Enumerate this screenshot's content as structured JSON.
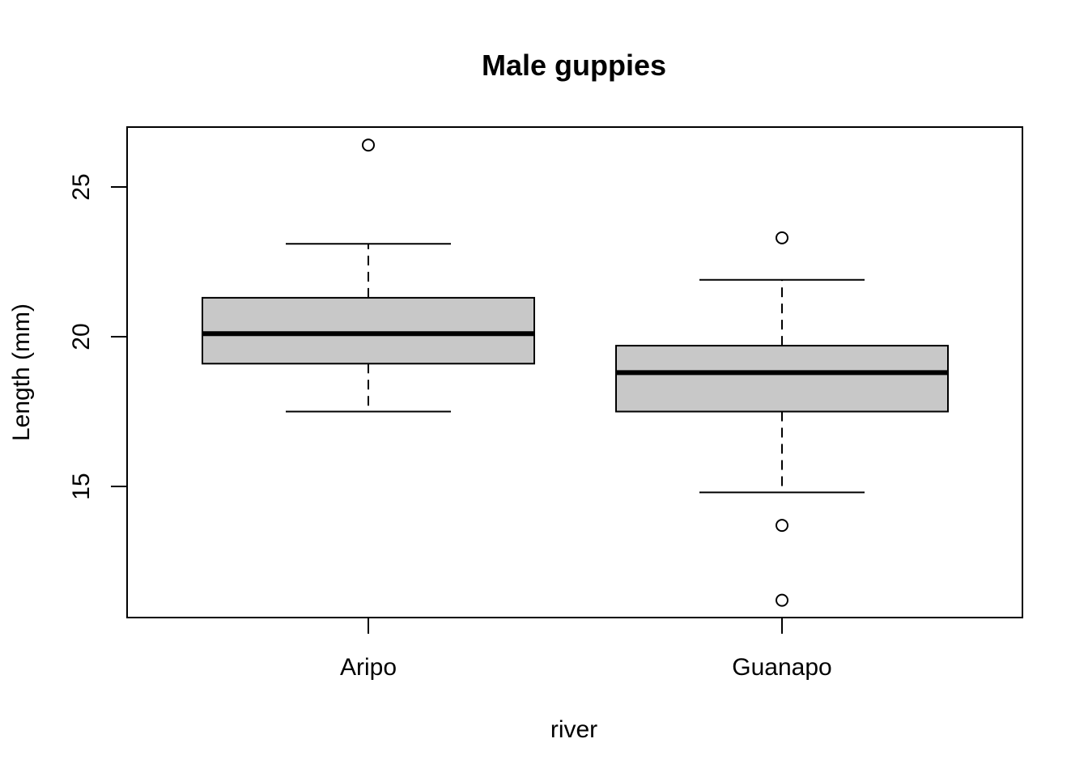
{
  "chart_data": {
    "type": "boxplot",
    "title": "Male guppies",
    "xlabel": "river",
    "ylabel": "Length (mm)",
    "categories": [
      "Aripo",
      "Guanapo"
    ],
    "y_ticks": [
      "15",
      "20",
      "25"
    ],
    "ylim": [
      10.6,
      27
    ],
    "grid": false,
    "box_fill": "#c8c8c8",
    "boxes": [
      {
        "category": "Aripo",
        "whisker_low": 17.5,
        "q1": 19.1,
        "median": 20.1,
        "q3": 21.3,
        "whisker_high": 23.1,
        "outliers": [
          26.4
        ]
      },
      {
        "category": "Guanapo",
        "whisker_low": 14.8,
        "q1": 17.5,
        "median": 18.8,
        "q3": 19.7,
        "whisker_high": 21.9,
        "outliers": [
          23.3,
          13.7,
          11.2
        ]
      }
    ]
  }
}
